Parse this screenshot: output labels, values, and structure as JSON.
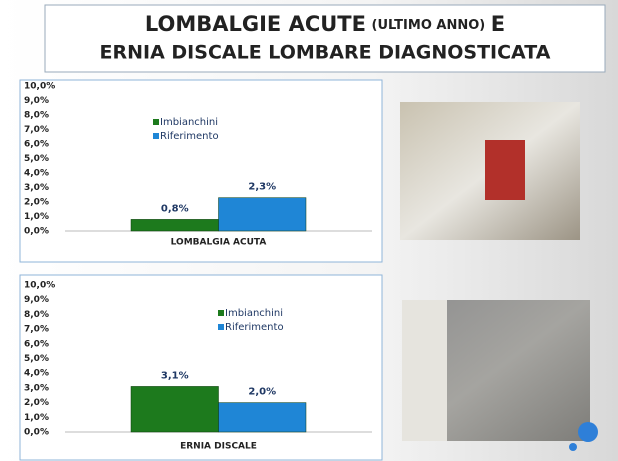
{
  "title": {
    "main": "LOMBALGIE ACUTE",
    "note": "(ULTIMO ANNO)",
    "joint": "E",
    "line2": "ERNIA DISCALE LOMBARE  DIAGNOSTICATA"
  },
  "chart_data": [
    {
      "type": "bar",
      "categories": [
        "LOMBALGIA ACUTA"
      ],
      "series": [
        {
          "name": "Imbianchini",
          "color": "#1d7a1d",
          "values": [
            0.8
          ],
          "value_labels": [
            "0,8%"
          ]
        },
        {
          "name": "Riferimento",
          "color": "#1f86d6",
          "values": [
            2.3
          ],
          "value_labels": [
            "2,3%"
          ]
        }
      ],
      "ylim": [
        0,
        10
      ],
      "yticks": [
        {
          "value": 0,
          "label": "0,0%"
        },
        {
          "value": 1,
          "label": "1,0%"
        },
        {
          "value": 2,
          "label": "2,0%"
        },
        {
          "value": 3,
          "label": "3,0%"
        },
        {
          "value": 4,
          "label": "4,0%"
        },
        {
          "value": 5,
          "label": "5,0%"
        },
        {
          "value": 6,
          "label": "6,0%"
        },
        {
          "value": 7,
          "label": "7,0%"
        },
        {
          "value": 8,
          "label": "8,0%"
        },
        {
          "value": 9,
          "label": "9,0%"
        },
        {
          "value": 10,
          "label": "10,0%"
        }
      ],
      "grid": false
    },
    {
      "type": "bar",
      "categories": [
        "ERNIA DISCALE"
      ],
      "series": [
        {
          "name": "Imbianchini",
          "color": "#1d7a1d",
          "values": [
            3.1
          ],
          "value_labels": [
            "3,1%"
          ]
        },
        {
          "name": "Riferimento",
          "color": "#1f86d6",
          "values": [
            2.0
          ],
          "value_labels": [
            "2,0%"
          ]
        }
      ],
      "ylim": [
        0,
        10
      ],
      "yticks": [
        {
          "value": 0,
          "label": "0,0%"
        },
        {
          "value": 1,
          "label": "1,0%"
        },
        {
          "value": 2,
          "label": "2,0%"
        },
        {
          "value": 3,
          "label": "3,0%"
        },
        {
          "value": 4,
          "label": "4,0%"
        },
        {
          "value": 5,
          "label": "5,0%"
        },
        {
          "value": 6,
          "label": "6,0%"
        },
        {
          "value": 7,
          "label": "7,0%"
        },
        {
          "value": 8,
          "label": "8,0%"
        },
        {
          "value": 9,
          "label": "9,0%"
        },
        {
          "value": 10,
          "label": "10,0%"
        }
      ],
      "grid": false
    }
  ]
}
